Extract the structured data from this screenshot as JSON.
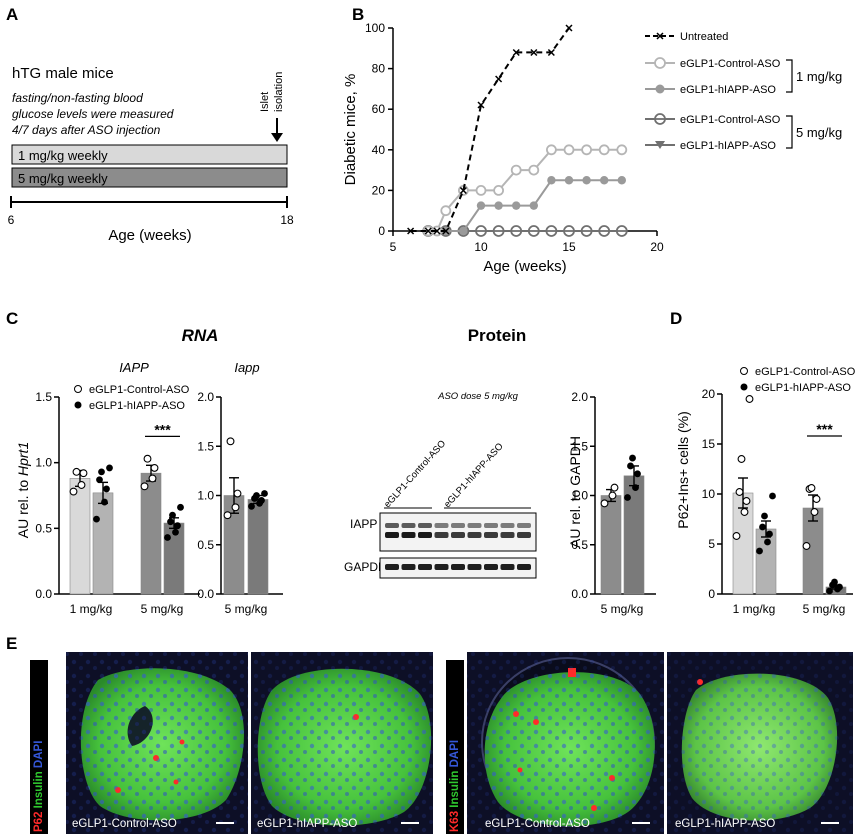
{
  "panels": {
    "A": {
      "label": "A",
      "title": "hTG male mice",
      "note_lines": [
        "fasting/non-fasting blood",
        "glucose levels were measured",
        "4/7 days after ASO injection"
      ],
      "arrow_label_lines": [
        "Islet",
        "isolation"
      ],
      "bars": [
        {
          "label": "1 mg/kg weekly",
          "color": "#d9d9d9"
        },
        {
          "label": "5 mg/kg weekly",
          "color": "#8c8c8c"
        }
      ],
      "axis_ticks": [
        "6",
        "18"
      ],
      "axis_label": "Age (weeks)"
    },
    "B": {
      "label": "B",
      "legend": {
        "groups": [
          {
            "bracket_label": "",
            "entries": [
              "Untreated"
            ]
          },
          {
            "bracket_label": "1 mg/kg",
            "entries": [
              "eGLP1-Control-ASO",
              "eGLP1-hIAPP-ASO"
            ]
          },
          {
            "bracket_label": "5 mg/kg",
            "entries": [
              "eGLP1-Control-ASO",
              "eGLP1-hIAPP-ASO"
            ]
          }
        ]
      },
      "chart_data": {
        "type": "line",
        "xlabel": "Age (weeks)",
        "ylabel": "Diabetic mice, %",
        "xlim": [
          5,
          20
        ],
        "ylim": [
          0,
          100
        ],
        "x_ticks": [
          5,
          10,
          15,
          20
        ],
        "y_ticks": [
          0,
          20,
          40,
          60,
          80,
          100
        ],
        "series": [
          {
            "name": "Untreated",
            "color": "#000000",
            "marker": "x",
            "dash": true,
            "x": [
              6,
              7,
              7.5,
              8,
              9,
              10,
              11,
              12,
              13,
              14,
              15
            ],
            "y": [
              0,
              0,
              0,
              0,
              20,
              62,
              75,
              88,
              88,
              88,
              100
            ]
          },
          {
            "name": "eGLP1-Control-ASO",
            "color": "#b5b5b5",
            "marker": "open-circle",
            "x": [
              7,
              7.5,
              8,
              9,
              10,
              11,
              12,
              13,
              14,
              15,
              16,
              17,
              18
            ],
            "y": [
              0,
              0,
              10,
              20,
              20,
              20,
              30,
              30,
              40,
              40,
              40,
              40,
              40
            ]
          },
          {
            "name": "eGLP1-hIAPP-ASO",
            "color": "#9a9a9a",
            "marker": "filled-circle",
            "x": [
              7,
              8,
              9,
              10,
              11,
              12,
              13,
              14,
              15,
              16,
              17,
              18
            ],
            "y": [
              0,
              0,
              0,
              12.5,
              12.5,
              12.5,
              12.5,
              25,
              25,
              25,
              25,
              25
            ]
          },
          {
            "name": "eGLP1-Control-ASO",
            "color": "#707070",
            "marker": "open-circle-bar",
            "x": [
              7,
              8,
              9,
              10,
              11,
              12,
              13,
              14,
              15,
              16,
              17,
              18
            ],
            "y": [
              0,
              0,
              0,
              0,
              0,
              0,
              0,
              0,
              0,
              0,
              0,
              0
            ]
          },
          {
            "name": "eGLP1-hIAPP-ASO",
            "color": "#707070",
            "marker": "filled-triangle",
            "x": [
              7,
              8,
              9,
              10,
              11,
              12,
              13,
              14,
              15,
              16,
              17,
              18
            ],
            "y": [
              0,
              0,
              0,
              0,
              0,
              0,
              0,
              0,
              0,
              0,
              0,
              0
            ]
          }
        ]
      }
    },
    "C": {
      "label": "C",
      "rna_title": "RNA",
      "protein_title": "Protein",
      "legend_entries": [
        "eGLP1-Control-ASO",
        "eGLP1-hIAPP-ASO"
      ],
      "iapp_chart": {
        "type": "bar",
        "title": "IAPP",
        "ylabel_prefix": "AU rel. to ",
        "ylabel_gene": "Hprt1",
        "ylim": [
          0,
          1.5
        ],
        "y_ticks": [
          "0.0",
          "0.5",
          "1.0",
          "1.5"
        ],
        "categories": [
          "1 mg/kg",
          "5 mg/kg"
        ],
        "significance": "***",
        "series": [
          {
            "name": "eGLP1-Control-ASO",
            "values": [
              0.88,
              0.92
            ],
            "errors": [
              0.06,
              0.06
            ],
            "points": [
              [
                0.78,
                0.83,
                0.92,
                0.93
              ],
              [
                0.82,
                0.88,
                0.96,
                1.03
              ]
            ]
          },
          {
            "name": "eGLP1-hIAPP-ASO",
            "values": [
              0.77,
              0.54
            ],
            "errors": [
              0.08,
              0.04
            ],
            "points": [
              [
                0.57,
                0.7,
                0.8,
                0.87,
                0.93,
                0.96
              ],
              [
                0.43,
                0.47,
                0.52,
                0.55,
                0.6,
                0.66
              ]
            ]
          }
        ]
      },
      "iapp_mouse_chart": {
        "type": "bar",
        "title": "Iapp",
        "ylim": [
          0,
          2.0
        ],
        "y_ticks": [
          "0.0",
          "0.5",
          "1.0",
          "1.5",
          "2.0"
        ],
        "categories": [
          "5 mg/kg"
        ],
        "series": [
          {
            "name": "eGLP1-Control-ASO",
            "values": [
              1.0
            ],
            "errors": [
              0.18
            ],
            "points": [
              [
                0.8,
                0.88,
                1.02,
                1.55
              ]
            ]
          },
          {
            "name": "eGLP1-hIAPP-ASO",
            "values": [
              0.96
            ],
            "errors": [
              0.04
            ],
            "points": [
              [
                0.89,
                0.92,
                0.95,
                0.97,
                1.0,
                1.02
              ]
            ]
          }
        ]
      },
      "blot": {
        "dose_label": "ASO dose  5 mg/kg",
        "lane_groups": [
          "eGLP1-Control-ASO",
          "eGLP1-hIAPP-ASO"
        ],
        "bands": [
          "IAPP",
          "GAPDH"
        ]
      },
      "protein_chart": {
        "type": "bar",
        "ylabel": "AU rel. to GAPDH",
        "ylim": [
          0,
          2.0
        ],
        "y_ticks": [
          "0.0",
          "0.5",
          "1.0",
          "1.5",
          "2.0"
        ],
        "categories": [
          "5 mg/kg"
        ],
        "series": [
          {
            "name": "eGLP1-Control-ASO",
            "values": [
              1.0
            ],
            "errors": [
              0.06
            ],
            "points": [
              [
                0.92,
                1.0,
                1.08
              ]
            ]
          },
          {
            "name": "eGLP1-hIAPP-ASO",
            "values": [
              1.2
            ],
            "errors": [
              0.1
            ],
            "points": [
              [
                0.98,
                1.08,
                1.22,
                1.3,
                1.38
              ]
            ]
          }
        ]
      }
    },
    "D": {
      "label": "D",
      "legend_entries": [
        "eGLP1-Control-ASO",
        "eGLP1-hIAPP-ASO"
      ],
      "chart_data": {
        "type": "bar",
        "ylabel": "P62+Ins+ cells (%)",
        "ylim": [
          0,
          20
        ],
        "y_ticks": [
          "0",
          "5",
          "10",
          "15",
          "20"
        ],
        "categories": [
          "1 mg/kg",
          "5 mg/kg"
        ],
        "significance": "***",
        "series": [
          {
            "name": "eGLP1-Control-ASO",
            "values": [
              10.1,
              8.6
            ],
            "errors": [
              1.5,
              1.3
            ],
            "points": [
              [
                5.8,
                8.2,
                9.3,
                10.2,
                13.5,
                19.5
              ],
              [
                4.8,
                8.2,
                9.5,
                10.5,
                10.6
              ]
            ]
          },
          {
            "name": "eGLP1-hIAPP-ASO",
            "values": [
              6.5,
              0.7
            ],
            "errors": [
              0.8,
              0.2
            ],
            "points": [
              [
                4.3,
                5.2,
                6.0,
                6.7,
                7.8,
                9.8
              ],
              [
                0.3,
                0.5,
                0.7,
                0.9,
                1.2
              ]
            ]
          }
        ]
      }
    },
    "E": {
      "label": "E",
      "stains_left": {
        "first": "P62",
        "second": "Insulin",
        "third": "DAPI"
      },
      "stains_right": {
        "first": "K63",
        "second": "Insulin",
        "third": "DAPI"
      },
      "colors": {
        "red": "#ff2a2a",
        "green": "#2fc82f",
        "blue": "#3557d8"
      },
      "images": [
        {
          "caption": "eGLP1-Control-ASO"
        },
        {
          "caption": "eGLP1-hIAPP-ASO"
        },
        {
          "caption": "eGLP1-Control-ASO"
        },
        {
          "caption": "eGLP1-hIAPP-ASO"
        }
      ]
    }
  }
}
